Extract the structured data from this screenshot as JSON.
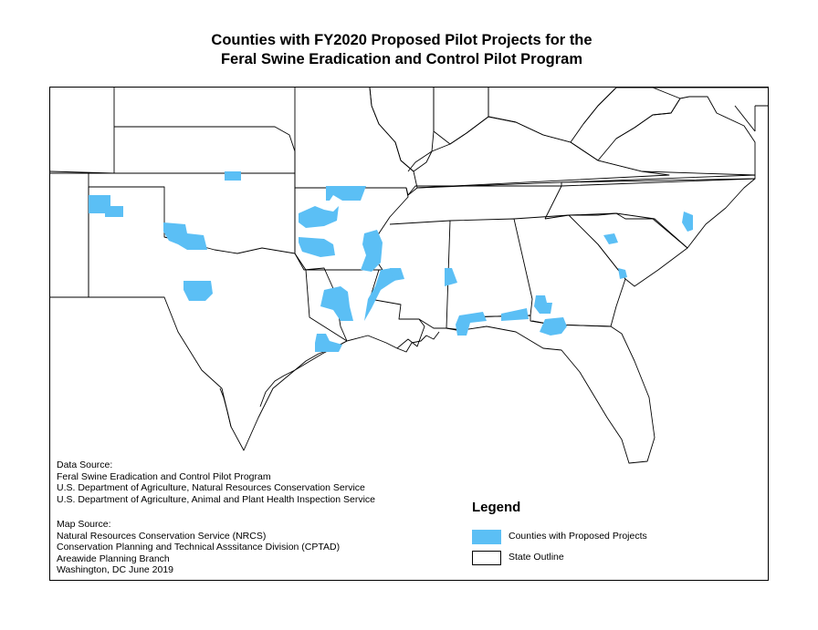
{
  "title": {
    "line1": "Counties with FY2020 Proposed Pilot Projects for the",
    "line2": "Feral Swine Eradication and Control Pilot Program"
  },
  "colors": {
    "county_fill": "#5bbff5",
    "state_outline": "#000000",
    "background": "#ffffff"
  },
  "data_source": {
    "heading": "Data Source:",
    "lines": [
      "Feral Swine Eradication and Control Pilot Program",
      "U.S. Department of Agriculture, Natural Resources Conservation Service",
      "U.S. Department of Agriculture, Animal and Plant Health Inspection Service"
    ]
  },
  "map_source": {
    "heading": "Map Source:",
    "lines": [
      "Natural Resources Conservation Service (NRCS)",
      "Conservation Planning and Technical Asssitance Division (CPTAD)",
      "Areawide Planning Branch",
      "Washington, DC June 2019"
    ]
  },
  "legend": {
    "title": "Legend",
    "items": [
      {
        "label": "Counties with Proposed Projects",
        "type": "county",
        "color": "#5bbff5"
      },
      {
        "label": "State Outline",
        "type": "outline",
        "color": "#ffffff"
      }
    ]
  }
}
